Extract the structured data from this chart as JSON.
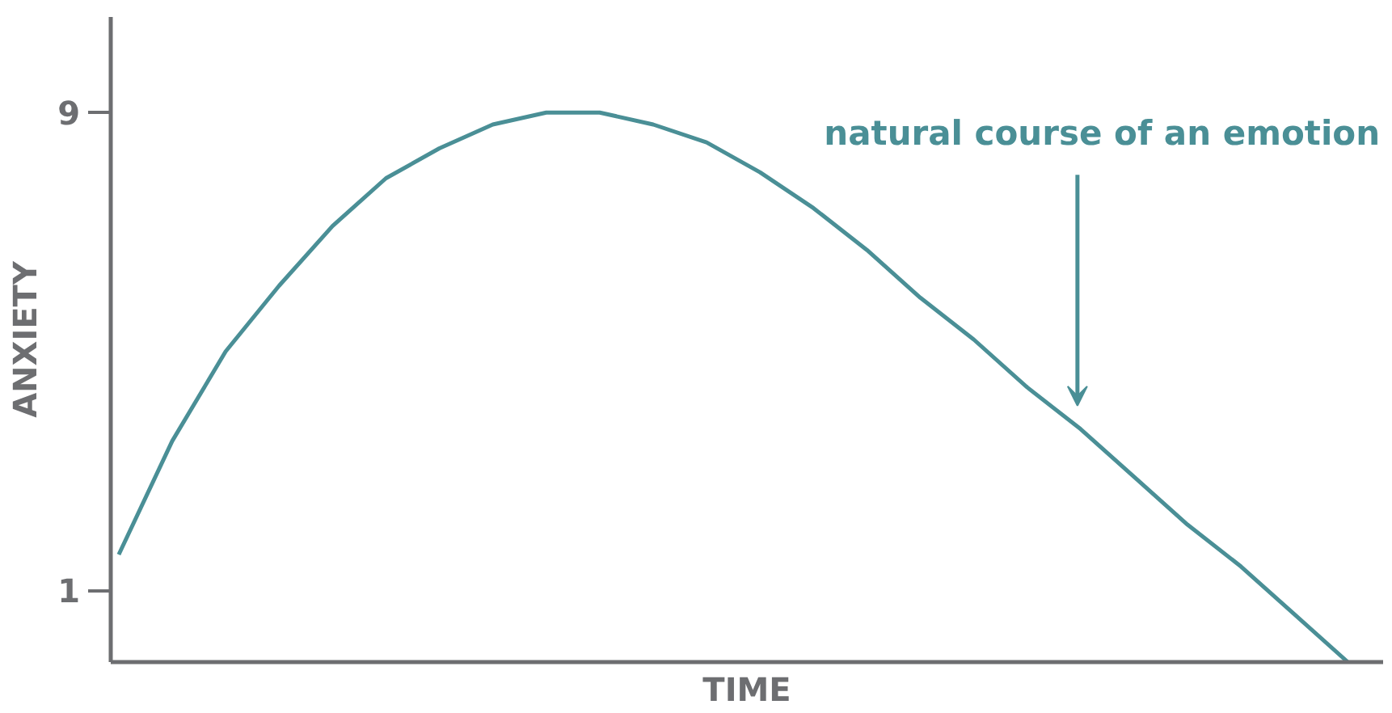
{
  "chart_data": {
    "type": "line",
    "xlabel": "TIME",
    "ylabel": "ANXIETY",
    "categories": [
      null,
      null,
      null,
      null,
      null,
      null,
      null,
      null,
      null,
      null,
      null,
      null,
      null,
      null,
      null,
      null,
      null,
      null,
      null,
      null,
      null,
      null,
      null,
      null
    ],
    "series": [
      {
        "color": "#4a8f96",
        "values": [
          1.6,
          3.5,
          5.0,
          6.1,
          7.1,
          7.9,
          8.4,
          8.8,
          9.0,
          9.0,
          8.8,
          8.5,
          8.0,
          7.4,
          6.7,
          5.9,
          5.2,
          4.4,
          3.7,
          2.9,
          2.1,
          1.4,
          0.6,
          -0.2
        ]
      }
    ],
    "ylim": [
      -0.2,
      10.6
    ],
    "yticks": [
      1,
      9
    ],
    "tick_labels": "y",
    "grid": false,
    "marker": "none",
    "line_style": "solid",
    "annotations": [
      "natural course of an emotion"
    ]
  }
}
